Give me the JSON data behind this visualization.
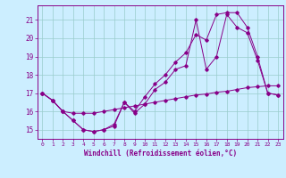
{
  "xlabel": "Windchill (Refroidissement éolien,°C)",
  "background_color": "#cceeff",
  "line_color": "#880088",
  "grid_color": "#99cccc",
  "x_ticks": [
    0,
    1,
    2,
    3,
    4,
    5,
    6,
    7,
    8,
    9,
    10,
    11,
    12,
    13,
    14,
    15,
    16,
    17,
    18,
    19,
    20,
    21,
    22,
    23
  ],
  "ylim": [
    14.5,
    21.8
  ],
  "yticks": [
    15,
    16,
    17,
    18,
    19,
    20,
    21
  ],
  "series1_y": [
    17.0,
    16.6,
    16.0,
    15.5,
    15.0,
    14.9,
    15.0,
    15.2,
    16.5,
    15.9,
    16.4,
    17.2,
    17.6,
    18.3,
    18.5,
    21.0,
    18.3,
    19.0,
    21.3,
    20.6,
    20.3,
    18.8,
    17.0,
    16.9
  ],
  "series2_y": [
    17.0,
    16.6,
    16.0,
    15.5,
    15.0,
    14.9,
    15.0,
    15.3,
    16.5,
    16.0,
    16.8,
    17.5,
    18.0,
    18.7,
    19.2,
    20.2,
    19.9,
    21.3,
    21.4,
    21.4,
    20.6,
    19.0,
    17.0,
    16.9
  ],
  "series3_y": [
    17.0,
    16.6,
    16.0,
    15.9,
    15.9,
    15.9,
    16.0,
    16.1,
    16.2,
    16.3,
    16.4,
    16.5,
    16.6,
    16.7,
    16.8,
    16.9,
    16.95,
    17.05,
    17.1,
    17.2,
    17.3,
    17.35,
    17.4,
    17.4
  ]
}
